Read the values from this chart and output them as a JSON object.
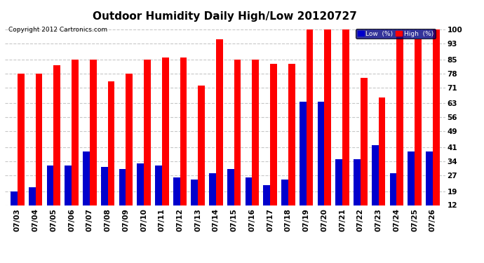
{
  "title": "Outdoor Humidity Daily High/Low 20120727",
  "copyright": "Copyright 2012 Cartronics.com",
  "dates": [
    "07/03",
    "07/04",
    "07/05",
    "07/06",
    "07/07",
    "07/08",
    "07/09",
    "07/10",
    "07/11",
    "07/12",
    "07/13",
    "07/14",
    "07/15",
    "07/16",
    "07/17",
    "07/18",
    "07/19",
    "07/20",
    "07/21",
    "07/22",
    "07/23",
    "07/24",
    "07/25",
    "07/26"
  ],
  "high": [
    78,
    78,
    82,
    85,
    85,
    74,
    78,
    85,
    86,
    86,
    72,
    95,
    85,
    85,
    83,
    83,
    100,
    100,
    100,
    76,
    66,
    99,
    95,
    100
  ],
  "low": [
    19,
    21,
    32,
    32,
    39,
    31,
    30,
    33,
    32,
    26,
    25,
    28,
    30,
    26,
    22,
    25,
    64,
    64,
    35,
    35,
    42,
    28,
    39,
    39
  ],
  "high_color": "#ff0000",
  "low_color": "#0000cc",
  "background_color": "#ffffff",
  "grid_color": "#c8c8c8",
  "yticks": [
    12,
    19,
    27,
    34,
    41,
    49,
    56,
    63,
    71,
    78,
    85,
    93,
    100
  ],
  "ymin": 12,
  "ymax": 103,
  "bar_width": 0.38,
  "title_fontsize": 11,
  "axis_fontsize": 7.5,
  "legend_low_label": "Low  (%)",
  "legend_high_label": "High  (%)"
}
